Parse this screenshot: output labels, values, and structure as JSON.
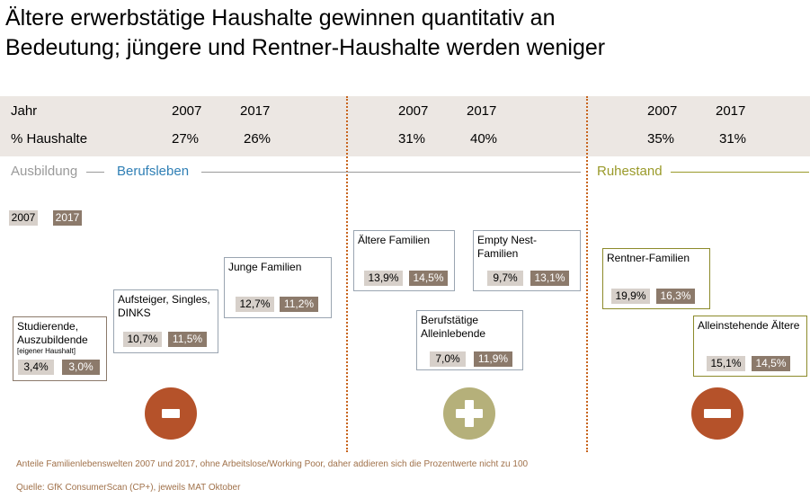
{
  "title": {
    "line1": "Ältere erwerbstätige Haushalte gewinnen quantitativ an",
    "line2": "Bedeutung; jüngere und Rentner-Haushalte werden weniger"
  },
  "header": {
    "row1_label": "Jahr",
    "row2_label": "% Haushalte",
    "groups": [
      {
        "year_a": "2007",
        "year_b": "2017",
        "pct_a": "27%",
        "pct_b": "26%"
      },
      {
        "year_a": "2007",
        "year_b": "2017",
        "pct_a": "31%",
        "pct_b": "40%"
      },
      {
        "year_a": "2007",
        "year_b": "2017",
        "pct_a": "35%",
        "pct_b": "31%"
      }
    ]
  },
  "phases": {
    "ausbildung": "Ausbildung",
    "berufsleben": "Berufsleben",
    "ruhestand": "Ruhestand"
  },
  "legend": {
    "y2007": "2007",
    "y2017": "2017"
  },
  "boxes": {
    "studierende": {
      "label": "Studierende, Auszubildende",
      "note": "[eigener Haushalt]",
      "v2007": "3,4%",
      "v2017": "3,0%"
    },
    "aufsteiger": {
      "label": "Aufsteiger, Singles, DINKS",
      "v2007": "10,7%",
      "v2017": "11,5%"
    },
    "junge_familien": {
      "label": "Junge Familien",
      "v2007": "12,7%",
      "v2017": "11,2%"
    },
    "aeltere_familien": {
      "label": "Ältere Familien",
      "v2007": "13,9%",
      "v2017": "14,5%"
    },
    "empty_nest": {
      "label": "Empty Nest-Familien",
      "v2007": "9,7%",
      "v2017": "13,1%"
    },
    "berufstaetige": {
      "label": "Berufstätige Alleinlebende",
      "v2007": "7,0%",
      "v2017": "11,9%"
    },
    "rentner_familien": {
      "label": "Rentner-Familien",
      "v2007": "19,9%",
      "v2017": "16,3%"
    },
    "alleinstehende": {
      "label": "Alleinstehende Ältere",
      "v2007": "15,1%",
      "v2017": "14,5%"
    }
  },
  "icons": {
    "left": "minus-icon",
    "middle": "plus-icon",
    "right": "minus-icon"
  },
  "colors": {
    "minus": "#b5522a",
    "plus": "#b5b07a",
    "divider": "#c8651e",
    "berufsleben": "#2f7fb5",
    "ruhestand": "#9a9a2a"
  },
  "footnotes": {
    "line1": "Anteile Familienlebenswelten 2007 und 2017, ohne Arbeitslose/Working Poor, daher addieren sich die Prozentwerte nicht zu 100",
    "line2": "Quelle: GfK ConsumerScan (CP+), jeweils MAT Oktober"
  }
}
